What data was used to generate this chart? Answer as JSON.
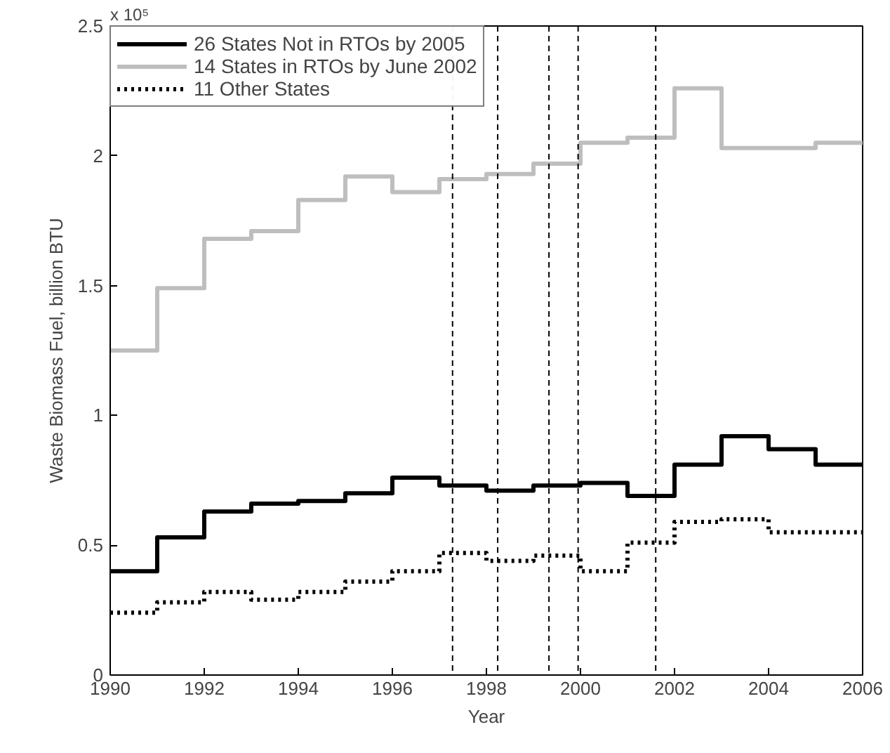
{
  "chart_data": {
    "type": "step",
    "xlabel": "Year",
    "ylabel": "Waste Biomass Fuel, billion BTU",
    "annotations": [
      "x 10⁵"
    ],
    "x": [
      1990,
      1991,
      1992,
      1993,
      1994,
      1995,
      1996,
      1997,
      1998,
      1999,
      2000,
      2001,
      2002,
      2003,
      2004,
      2005,
      2006
    ],
    "series": [
      {
        "name": "26 States Not in RTOs by 2005",
        "color": "#000000",
        "line_style": "solid",
        "values": [
          0.4,
          0.53,
          0.63,
          0.66,
          0.67,
          0.7,
          0.76,
          0.73,
          0.71,
          0.73,
          0.74,
          0.69,
          0.81,
          0.92,
          0.87,
          0.81,
          0.81
        ]
      },
      {
        "name": "14 States in RTOs by June 2002",
        "color": "#bebebe",
        "line_style": "solid",
        "values": [
          1.25,
          1.49,
          1.68,
          1.71,
          1.83,
          1.92,
          1.86,
          1.91,
          1.93,
          1.97,
          2.05,
          2.07,
          2.26,
          2.03,
          2.03,
          2.05,
          2.05
        ]
      },
      {
        "name": "11 Other States",
        "color": "#000000",
        "line_style": "dotted",
        "values": [
          0.24,
          0.28,
          0.32,
          0.29,
          0.32,
          0.36,
          0.4,
          0.47,
          0.44,
          0.46,
          0.4,
          0.51,
          0.59,
          0.6,
          0.55,
          0.55,
          0.55
        ]
      }
    ],
    "ref_lines": [
      {
        "axis": "x",
        "value": 1997.28,
        "color": "#000000",
        "line_style": "dashed"
      },
      {
        "axis": "x",
        "value": 1998.24,
        "color": "#000000",
        "line_style": "dashed"
      },
      {
        "axis": "x",
        "value": 1999.33,
        "color": "#000000",
        "line_style": "dashed"
      },
      {
        "axis": "x",
        "value": 1999.95,
        "color": "#000000",
        "line_style": "dashed"
      },
      {
        "axis": "x",
        "value": 2001.6,
        "color": "#000000",
        "line_style": "dashed"
      }
    ],
    "xlim": [
      1990,
      2006
    ],
    "xticks": [
      1990,
      1992,
      1994,
      1996,
      1998,
      2000,
      2002,
      2004,
      2006
    ],
    "ylim": [
      0,
      2.5
    ],
    "yticks": [
      0,
      0.5,
      1,
      1.5,
      2,
      2.5
    ],
    "grid": false,
    "legend": "top left"
  }
}
